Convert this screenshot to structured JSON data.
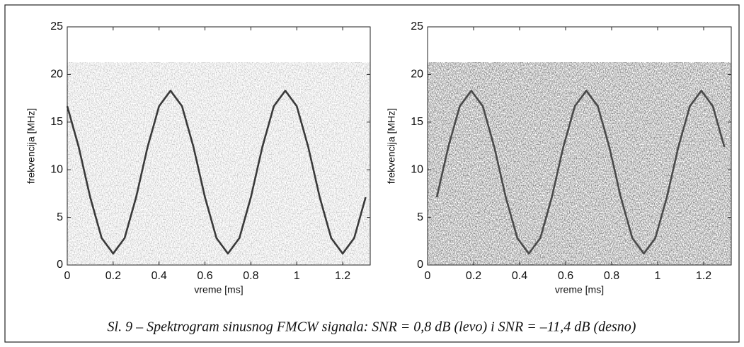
{
  "chart_data": [
    {
      "type": "line",
      "xlabel": "vreme [ms]",
      "ylabel": "frekvencija [MHz]",
      "xlim": [
        0,
        1.32
      ],
      "ylim": [
        0,
        25
      ],
      "xticks": [
        0,
        0.2,
        0.4,
        0.6,
        0.8,
        1,
        1.2
      ],
      "yticks": [
        0,
        5,
        10,
        15,
        20,
        25
      ],
      "series": [
        {
          "color": "#3a3a3a",
          "x": [
            0,
            0.05,
            0.1,
            0.15,
            0.2,
            0.25,
            0.3,
            0.35,
            0.4,
            0.45,
            0.5,
            0.55,
            0.6,
            0.65,
            0.7,
            0.75,
            0.8,
            0.85,
            0.9,
            0.95,
            1,
            1.05,
            1.1,
            1.15,
            1.2,
            1.25,
            1.3
          ],
          "values": [
            16.67,
            12.39,
            7.11,
            2.83,
            1.2,
            2.83,
            7.11,
            12.39,
            16.67,
            18.3,
            16.67,
            12.39,
            7.11,
            2.83,
            1.2,
            2.83,
            7.11,
            12.39,
            16.67,
            18.3,
            16.67,
            12.39,
            7.11,
            2.83,
            1.2,
            2.83,
            7.11
          ]
        }
      ]
    },
    {
      "type": "line",
      "xlabel": "vreme [ms]",
      "ylabel": "frekvencija [MHz]",
      "xlim": [
        0,
        1.32
      ],
      "ylim": [
        0,
        25
      ],
      "xticks": [
        0,
        0.2,
        0.4,
        0.6,
        0.8,
        1,
        1.2
      ],
      "yticks": [
        0,
        5,
        10,
        15,
        20,
        25
      ],
      "series": [
        {
          "color": "#4a4a4a",
          "x": [
            0.04,
            0.09,
            0.14,
            0.19,
            0.24,
            0.29,
            0.34,
            0.39,
            0.44,
            0.49,
            0.54,
            0.59,
            0.64,
            0.69,
            0.74,
            0.79,
            0.84,
            0.89,
            0.94,
            0.99,
            1.04,
            1.09,
            1.14,
            1.19,
            1.24,
            1.29
          ],
          "values": [
            7.11,
            12.39,
            16.67,
            18.3,
            16.67,
            12.39,
            7.11,
            2.83,
            1.2,
            2.83,
            7.11,
            12.39,
            16.67,
            18.3,
            16.67,
            12.39,
            7.11,
            2.83,
            1.2,
            2.83,
            7.11,
            12.39,
            16.67,
            18.3,
            16.67,
            12.39
          ]
        }
      ]
    }
  ],
  "caption": "Sl. 9 – Spektrogram sinusnog FMCW signala: SNR = 0,8 dB (levo) i SNR = –11,4 dB (desno)"
}
